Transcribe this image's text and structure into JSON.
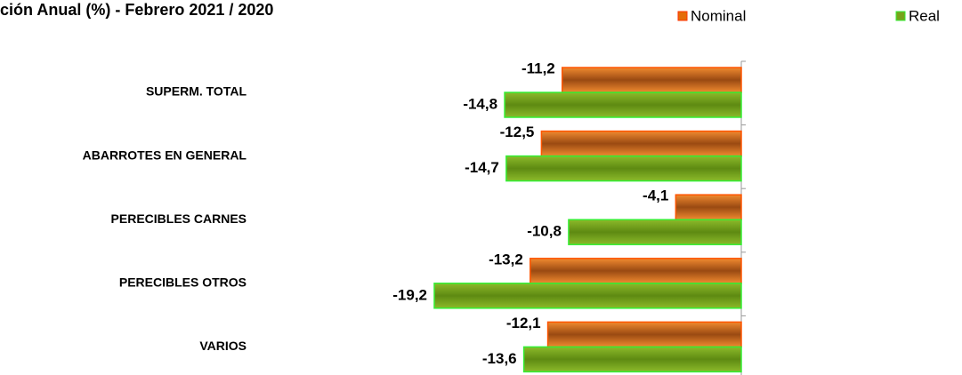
{
  "chart_data": {
    "type": "hbar",
    "title": "ción Anual (%) -  Febrero 2021 / 2020",
    "categories": [
      "SUPERM. TOTAL",
      "ABARROTES EN GENERAL",
      "PERECIBLES CARNES",
      "PERECIBLES OTROS",
      "VARIOS"
    ],
    "series": [
      {
        "name": "Nominal",
        "color": "#e46c0a",
        "values": [
          -11.2,
          -12.5,
          -4.1,
          -13.2,
          -12.1
        ],
        "value_labels": [
          "-11,2",
          "-12,5",
          "-4,1",
          "-13,2",
          "-12,1"
        ]
      },
      {
        "name": "Real",
        "color": "#77a31a",
        "values": [
          -14.8,
          -14.7,
          -10.8,
          -19.2,
          -13.6
        ],
        "value_labels": [
          "-14,8",
          "-14,7",
          "-10,8",
          "-19,2",
          "-13,6"
        ]
      }
    ]
  }
}
